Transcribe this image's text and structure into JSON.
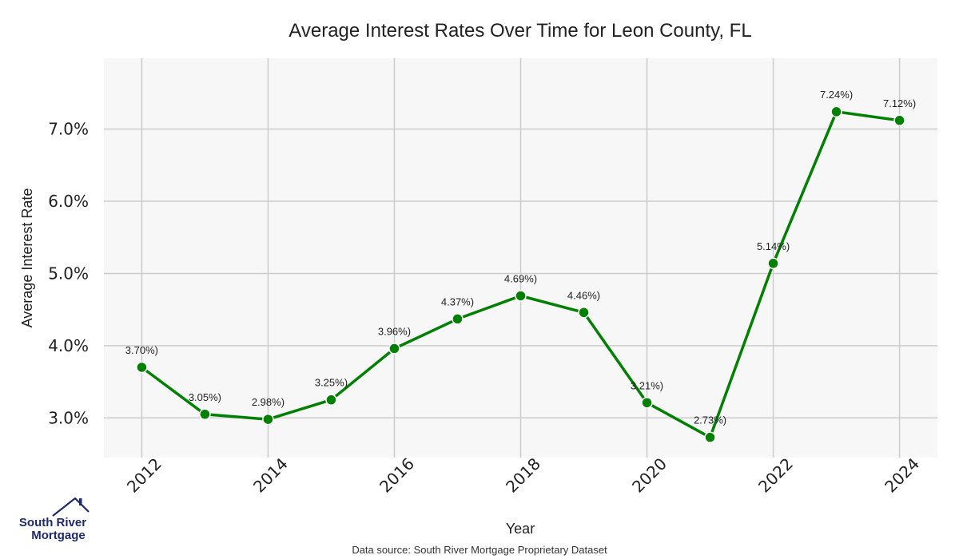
{
  "chart_data": {
    "type": "line",
    "title": "Average Interest Rates Over Time for Leon County, FL",
    "xlabel": "Year",
    "ylabel": "Average Interest Rate",
    "x": [
      2012,
      2013,
      2014,
      2015,
      2016,
      2017,
      2018,
      2019,
      2020,
      2021,
      2022,
      2023,
      2024
    ],
    "series": [
      {
        "values": [
          3.7,
          3.05,
          2.98,
          3.25,
          3.96,
          4.37,
          4.69,
          4.46,
          3.21,
          2.73,
          5.14,
          7.24,
          7.12
        ],
        "labels": [
          "3.70%)",
          "3.05%)",
          "2.98%)",
          "3.25%)",
          "3.96%)",
          "4.37%)",
          "4.69%)",
          "4.46%)",
          "3.21%)",
          "2.73%)",
          "5.14%)",
          "7.24%)",
          "7.12%)"
        ],
        "color": "#008000"
      }
    ],
    "xticks": [
      "2012",
      "2014",
      "2016",
      "2018",
      "2020",
      "2022",
      "2024"
    ],
    "xtick_values": [
      2012,
      2014,
      2016,
      2018,
      2020,
      2022,
      2024
    ],
    "yticks": [
      "3.0%",
      "4.0%",
      "5.0%",
      "6.0%",
      "7.0%"
    ],
    "ytick_values": [
      3.0,
      4.0,
      5.0,
      6.0,
      7.0
    ],
    "xlim": [
      2011.4,
      2024.6
    ],
    "ylim": [
      2.45,
      7.98
    ],
    "grid": true,
    "legend": "none"
  },
  "source_note": "Data source: South River Mortgage Proprietary Dataset",
  "logo": {
    "line1": "South River",
    "line2": "Mortgage",
    "colors": {
      "navy": "#1f2a6b",
      "green": "#3a8a3a"
    }
  },
  "colors": {
    "plot_background": "#f7f7f7",
    "grid": "#cccccc",
    "line": "#008000"
  }
}
